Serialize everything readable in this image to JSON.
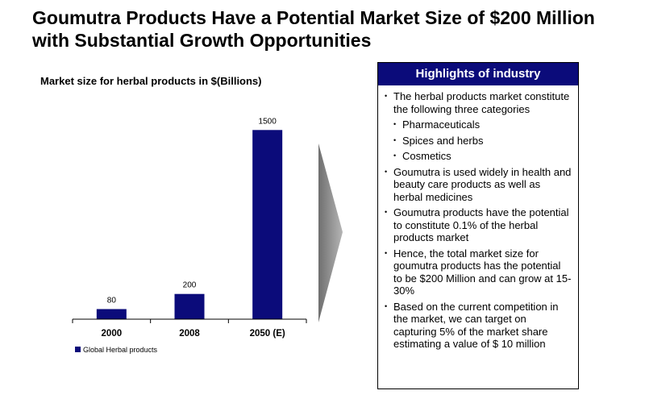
{
  "slide": {
    "title": "Goumutra Products Have a Potential Market Size of $200 Million with Substantial Growth Opportunities"
  },
  "chart_data": {
    "type": "bar",
    "title": "Market size for herbal products in $(Billions)",
    "categories": [
      "2000",
      "2008",
      "2050 (E)"
    ],
    "series": [
      {
        "name": "Global Herbal products",
        "values": [
          80,
          200,
          1500
        ],
        "color": "#0b0b7a"
      }
    ],
    "data_labels": [
      "80",
      "200",
      "1500"
    ],
    "ylim": [
      0,
      1700
    ],
    "xlabel": "",
    "ylabel": "",
    "grid": false,
    "legend_position": "bottom-left"
  },
  "highlights": {
    "header": "Highlights of industry",
    "bullet": "•",
    "item1": "The herbal products market constitute the following three categories",
    "sub1": "Pharmaceuticals",
    "sub2": "Spices and herbs",
    "sub3": "Cosmetics",
    "item2": "Goumutra is used widely in health and beauty care products as well as herbal medicines",
    "item3": "Goumutra products have the potential to constitute 0.1% of the herbal products market",
    "item4": "Hence, the total market size for goumutra products has the potential to be $200 Million and can grow at 15-30%",
    "item5": "Based on the current competition in the market, we can target on capturing 5% of the market share estimating a value of $ 10 million"
  },
  "colors": {
    "bar": "#0b0b7a",
    "header_bg": "#0b0b7a",
    "arrow": "#8c8c8c"
  }
}
